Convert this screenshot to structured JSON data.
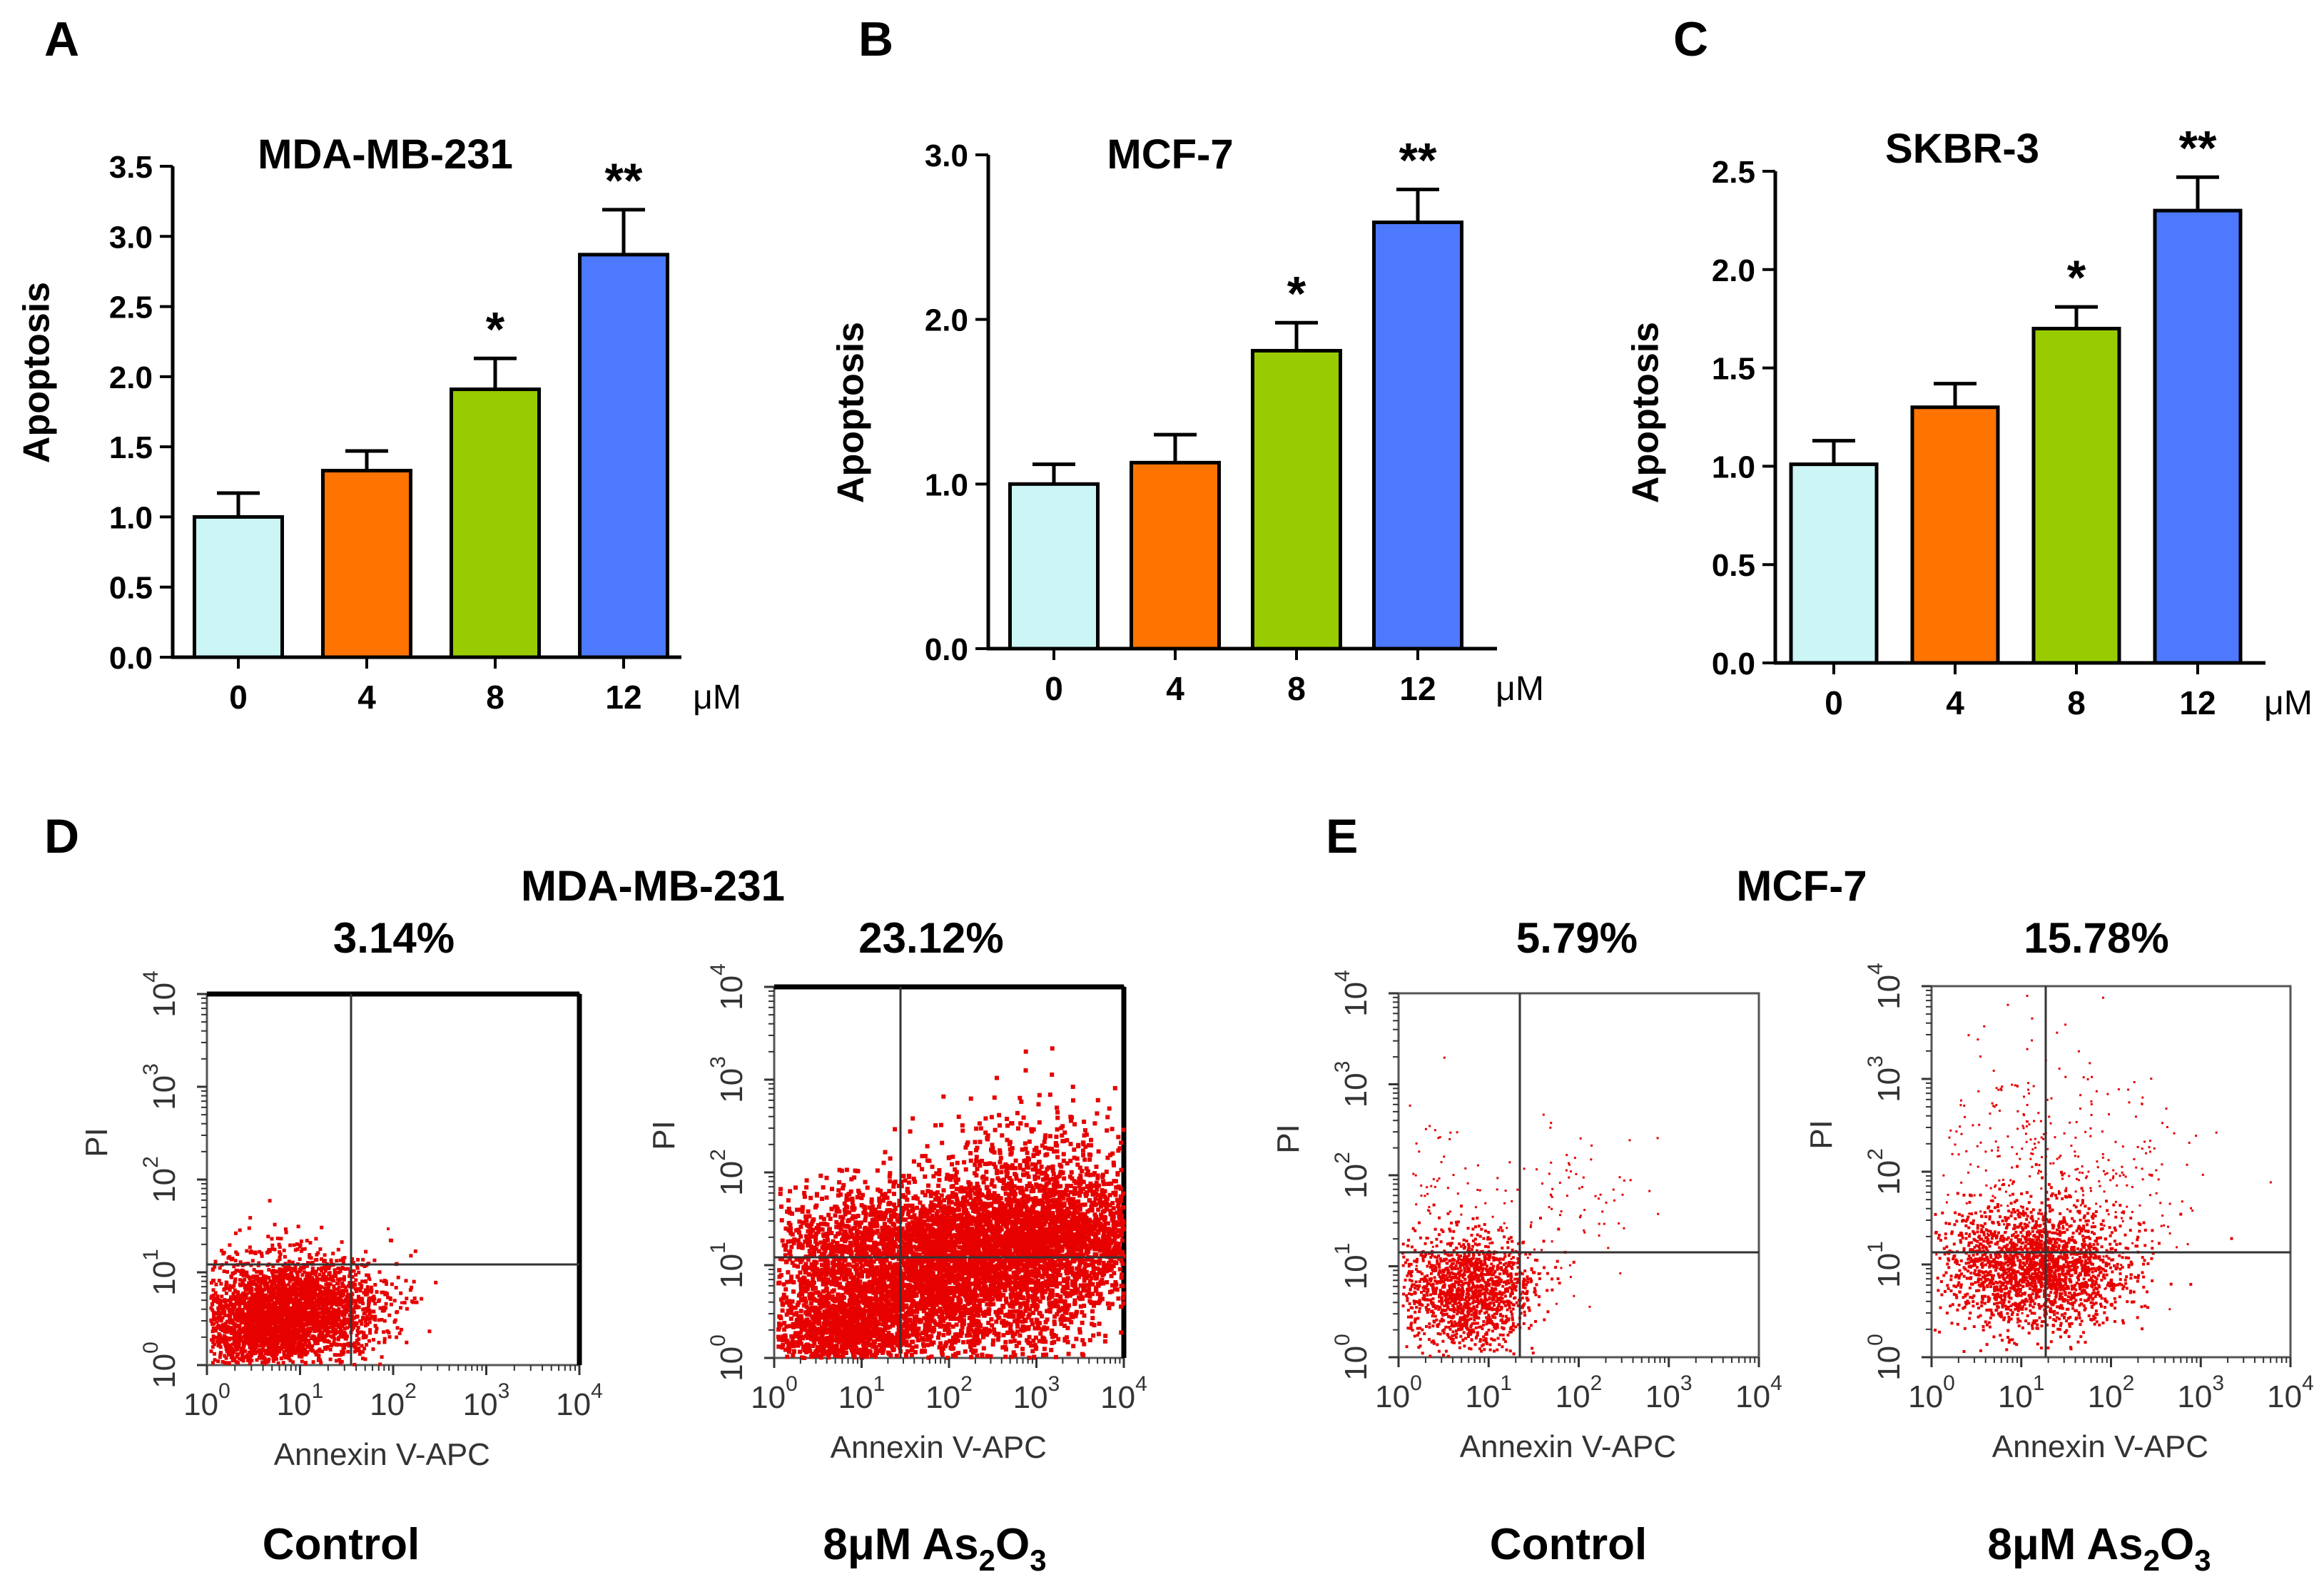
{
  "figure": {
    "unit_label": "μM",
    "flow_x_label": "Annexin V-APC",
    "flow_y_label": "PI"
  },
  "panels_bar": [
    {
      "letter": "A"
    },
    {
      "letter": "B"
    },
    {
      "letter": "C"
    }
  ],
  "panels_flow": [
    {
      "letter": "D",
      "cell_line": "MDA-MB-231",
      "plots": [
        {
          "percent": "3.14%",
          "condition": "Control",
          "pattern": "control"
        },
        {
          "percent": "23.12%",
          "condition_main": "8μM As",
          "sub1": "2",
          "mid": "O",
          "sub2": "3",
          "pattern": "treated-heavy"
        }
      ]
    },
    {
      "letter": "E",
      "cell_line": "MCF-7",
      "plots": [
        {
          "percent": "5.79%",
          "condition": "Control",
          "pattern": "control-sparse"
        },
        {
          "percent": "15.78%",
          "condition_main": "8μM As",
          "sub1": "2",
          "mid": "O",
          "sub2": "3",
          "pattern": "treated-sparse"
        }
      ]
    }
  ],
  "chart_data": [
    {
      "type": "bar",
      "title": "MDA-MB-231",
      "xlabel": "μM",
      "ylabel": "Apoptosis",
      "categories": [
        "0",
        "4",
        "8",
        "12"
      ],
      "values": [
        1.0,
        1.33,
        1.91,
        2.87
      ],
      "errors": [
        0.17,
        0.14,
        0.22,
        0.32
      ],
      "significance": [
        "",
        "",
        "*",
        "**"
      ],
      "ylim": [
        0,
        3.5
      ],
      "yticks": [
        "0.0",
        "0.5",
        "1.0",
        "1.5",
        "2.0",
        "2.5",
        "3.0",
        "3.5"
      ],
      "colors": [
        "#ccf5f5",
        "#ff7300",
        "#99cc00",
        "#4d79ff"
      ]
    },
    {
      "type": "bar",
      "title": "MCF-7",
      "xlabel": "μM",
      "ylabel": "Apoptosis",
      "categories": [
        "0",
        "4",
        "8",
        "12"
      ],
      "values": [
        1.0,
        1.13,
        1.81,
        2.59
      ],
      "errors": [
        0.12,
        0.17,
        0.17,
        0.2
      ],
      "significance": [
        "",
        "",
        "*",
        "**"
      ],
      "ylim": [
        0,
        3.0
      ],
      "yticks": [
        "0.0",
        "1.0",
        "2.0",
        "3.0"
      ],
      "colors": [
        "#ccf5f5",
        "#ff7300",
        "#99cc00",
        "#4d79ff"
      ]
    },
    {
      "type": "bar",
      "title": "SKBR-3",
      "xlabel": "μM",
      "ylabel": "Apoptosis",
      "categories": [
        "0",
        "4",
        "8",
        "12"
      ],
      "values": [
        1.01,
        1.3,
        1.7,
        2.3
      ],
      "errors": [
        0.12,
        0.12,
        0.11,
        0.17
      ],
      "significance": [
        "",
        "",
        "*",
        "**"
      ],
      "ylim": [
        0,
        2.5
      ],
      "yticks": [
        "0.0",
        "0.5",
        "1.0",
        "1.5",
        "2.0",
        "2.5"
      ],
      "colors": [
        "#ccf5f5",
        "#ff7300",
        "#99cc00",
        "#4d79ff"
      ]
    }
  ]
}
